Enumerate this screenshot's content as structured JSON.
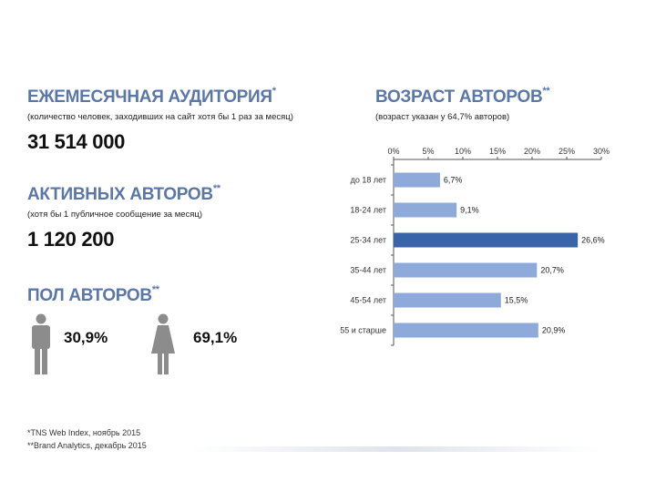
{
  "left": {
    "audience": {
      "title": "ЕЖЕМЕСЯЧНАЯ АУДИТОРИЯ",
      "title_mark": "*",
      "subtitle": "(количество человек, заходивших на сайт хотя бы 1 раз за месяц)",
      "value": "31 514 000"
    },
    "active": {
      "title": "АКТИВНЫХ АВТОРОВ",
      "title_mark": "**",
      "subtitle": "(хотя бы 1 публичное сообщение за месяц)",
      "value": "1 120 200"
    },
    "gender": {
      "title": "ПОЛ АВТОРОВ",
      "title_mark": "**",
      "male_pct": "30,9%",
      "female_pct": "69,1%",
      "male_icon": "male-person-icon",
      "female_icon": "female-person-icon"
    }
  },
  "footnotes": [
    "*TNS Web Index, ноябрь 2015",
    "**Brand Analytics, декабрь 2015"
  ],
  "age": {
    "title": "ВОЗРАСТ АВТОРОВ",
    "title_mark": "**",
    "subtitle": "(возраст указан у 64,7% авторов)"
  },
  "colors": {
    "heading": "#5b77a8",
    "bar": "#8eaadb",
    "bar_highlight": "#3a64a8",
    "icon": "#8c8c8c",
    "axis": "#555555"
  },
  "chart_data": {
    "type": "bar",
    "orientation": "horizontal",
    "categories": [
      "до 18 лет",
      "18-24 лет",
      "25-34 лет",
      "35-44 лет",
      "45-54 лет",
      "55 и старше"
    ],
    "values": [
      6.7,
      9.1,
      26.6,
      20.7,
      15.5,
      20.9
    ],
    "value_labels": [
      "6,7%",
      "9,1%",
      "26,6%",
      "20,7%",
      "15,5%",
      "20,9%"
    ],
    "highlight_index": 2,
    "xlim": [
      0,
      30
    ],
    "xticks": [
      0,
      5,
      10,
      15,
      20,
      25,
      30
    ],
    "xtick_labels": [
      "0%",
      "5%",
      "10%",
      "15%",
      "20%",
      "25%",
      "30%"
    ],
    "grid": false,
    "legend": false
  }
}
